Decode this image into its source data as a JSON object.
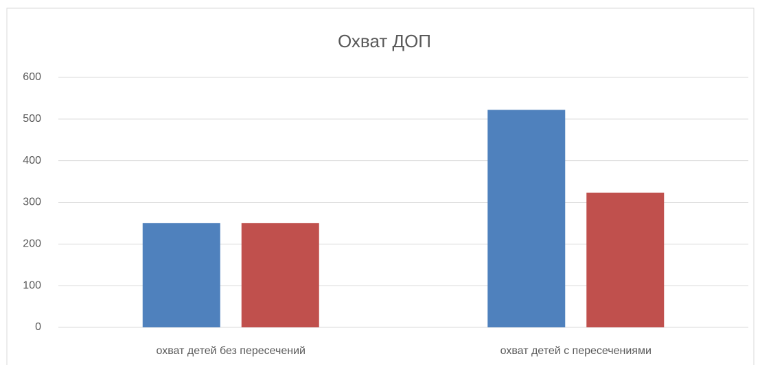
{
  "chart_data": {
    "type": "bar",
    "title": "Охват ДОП",
    "categories": [
      "охват детей без пересечений",
      "охват детей с пересечениями"
    ],
    "series": [
      {
        "color": "#4f81bd",
        "values": [
          250,
          522
        ]
      },
      {
        "color": "#c0504d",
        "values": [
          250,
          323
        ]
      }
    ],
    "ylim": [
      0,
      600
    ],
    "yticks": [
      0,
      100,
      200,
      300,
      400,
      500,
      600
    ],
    "grid": true
  }
}
